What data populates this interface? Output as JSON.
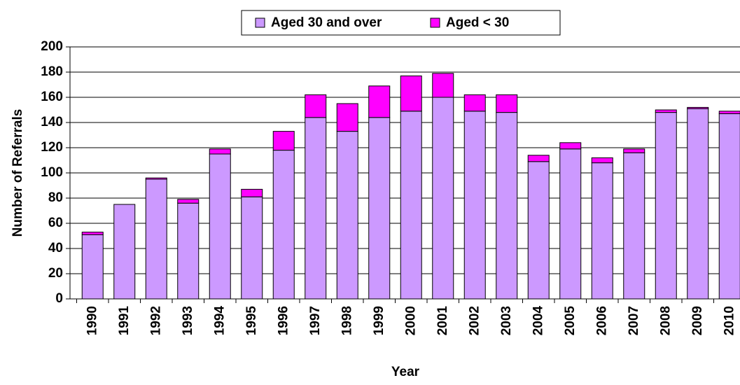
{
  "chart_data": {
    "type": "stacked-bar",
    "x_label": "Year",
    "y_label": "Number of Referrals",
    "categories": [
      "1990",
      "1991",
      "1992",
      "1993",
      "1994",
      "1995",
      "1996",
      "1997",
      "1998",
      "1999",
      "2000",
      "2001",
      "2002",
      "2003",
      "2004",
      "2005",
      "2006",
      "2007",
      "2008",
      "2009",
      "2010"
    ],
    "series": [
      {
        "name": "Aged 30 and over",
        "color": "#cc99ff",
        "values": [
          51,
          75,
          95,
          76,
          115,
          81,
          118,
          144,
          133,
          144,
          149,
          160,
          149,
          148,
          109,
          119,
          108,
          116,
          148,
          151,
          147
        ]
      },
      {
        "name": "Aged < 30",
        "color": "#ff00ff",
        "values": [
          2,
          0,
          1,
          3,
          4,
          6,
          15,
          18,
          22,
          25,
          28,
          19,
          13,
          14,
          5,
          5,
          4,
          3,
          2,
          1,
          2
        ]
      }
    ],
    "ylim": [
      0,
      200
    ],
    "yticks": [
      0,
      20,
      40,
      60,
      80,
      100,
      120,
      140,
      160,
      180,
      200
    ],
    "grid": true,
    "legend": "top"
  }
}
